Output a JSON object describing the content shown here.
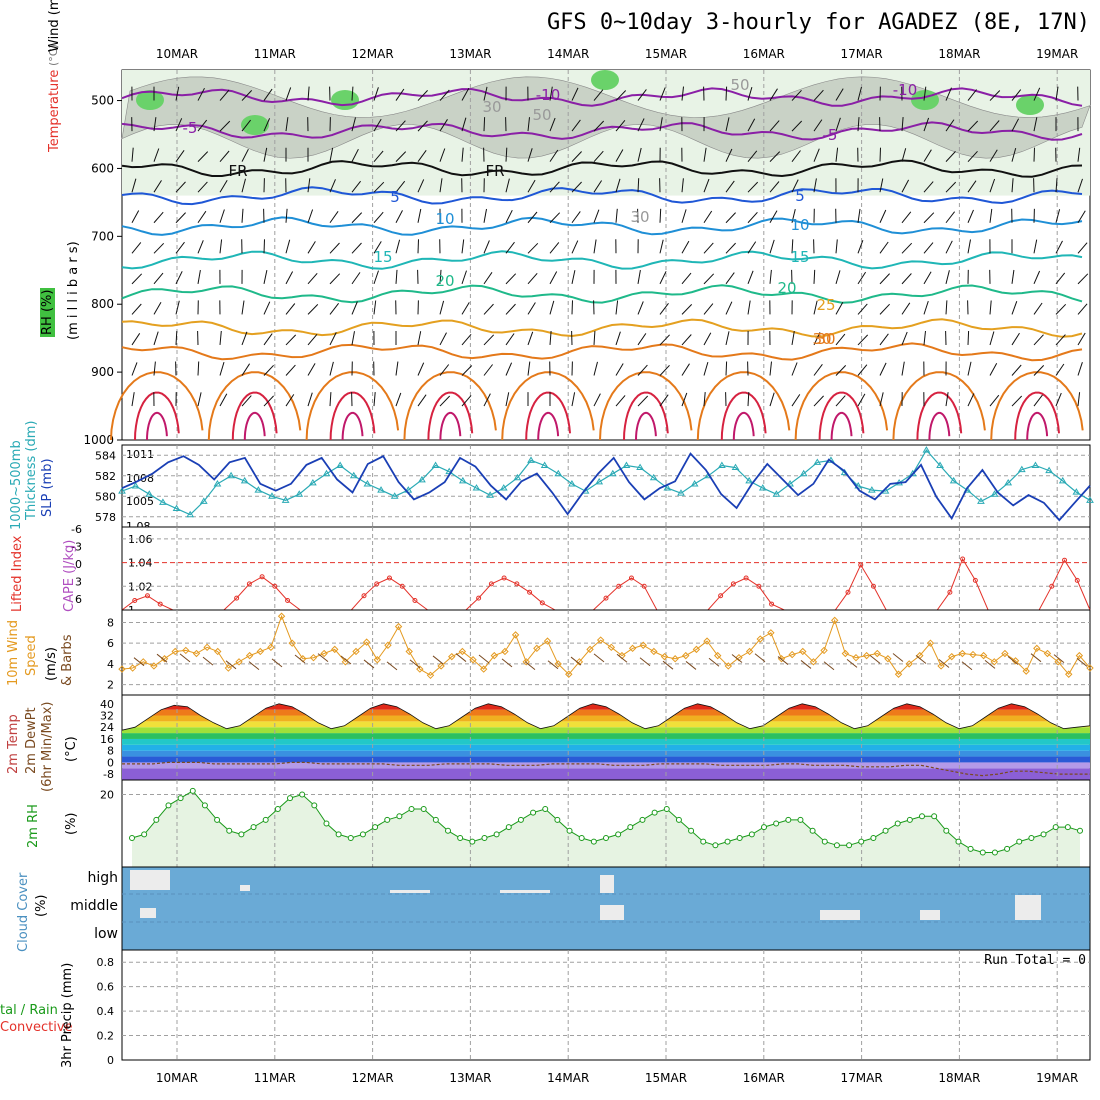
{
  "title": "GFS 0~10day 3-hourly for AGADEZ (8E, 17N)",
  "dates": [
    "10MAR",
    "11MAR",
    "12MAR",
    "13MAR",
    "14MAR",
    "15MAR",
    "16MAR",
    "17MAR",
    "18MAR",
    "19MAR"
  ],
  "run_total_label": "Run Total = 0",
  "colors": {
    "wind_label": "#222222",
    "temp_label": "#e4322a",
    "rh_label_bg": "#40c040",
    "thick": "#2aaab5",
    "slp": "#1a3fb5",
    "li": "#e4322a",
    "cape": "#b04fc0",
    "wind10": "#e49a20",
    "rh2m": "#1a9a1a",
    "cloud": "#6aaad6",
    "precip_total": "#1a9a1a",
    "precip_conv": "#e4322a"
  },
  "panels": {
    "upper": {
      "ylabels": [
        "500",
        "600",
        "700",
        "800",
        "900",
        "1000"
      ],
      "side_labels": {
        "temp": "Temperature",
        "temp_unit": "(°C)",
        "wind": "Wind (m/s)",
        "rh": "RH (%)",
        "pressure": "(m i l l i b a r s)"
      },
      "contour_labels": [
        "-10",
        "-5",
        "FR",
        "5",
        "10",
        "15",
        "20",
        "25",
        "30",
        "-10",
        "-5",
        "FR",
        "5",
        "10",
        "15",
        "20",
        "30",
        "50",
        "30",
        "50",
        "30"
      ]
    },
    "thick_slp": {
      "left_labels": [
        "584",
        "582",
        "580",
        "578"
      ],
      "right_labels": [
        "1011",
        "1008",
        "1005",
        "1.08"
      ],
      "side_labels": {
        "thick": "1000~500mb",
        "thick2": "Thickness (dm)",
        "slp": "SLP (mb)"
      }
    },
    "li_cape": {
      "left_labels": [
        "-6",
        "-3",
        "0",
        "3",
        "6"
      ],
      "right_labels": [
        "1.06",
        "1.04",
        "1.02",
        "1"
      ],
      "side_labels": {
        "li": "Lifted Index",
        "cape": "CAPE (J/kg)"
      }
    },
    "wind10": {
      "right_labels": [
        "8",
        "6",
        "4",
        "2"
      ],
      "side_labels": {
        "a": "10m Wind",
        "b": "Speed",
        "c": "(m/s)",
        "d": "& Barbs"
      }
    },
    "temp2m": {
      "right_labels": [
        "40",
        "32",
        "24",
        "16",
        "8",
        "0",
        "-8"
      ],
      "side_labels": {
        "a": "2m Temp",
        "b": "2m DewPt",
        "c": "(6hr Min/Max)",
        "d": "(°C)"
      }
    },
    "rh2m": {
      "right_labels": [
        "20"
      ],
      "side_labels": {
        "a": "2m RH",
        "b": "(%)"
      }
    },
    "cloud": {
      "levels": [
        "high",
        "middle",
        "low"
      ],
      "side_labels": {
        "a": "Cloud Cover",
        "b": "(%)"
      }
    },
    "precip": {
      "left_labels": [
        "0.8",
        "0.6",
        "0.4",
        "0.2",
        "0"
      ],
      "side_labels": {
        "a": "tal / Rain",
        "b": "Convective",
        "c": "3hr Precip (mm)"
      }
    }
  },
  "chart_data": [
    {
      "type": "line",
      "name": "upper-air",
      "title": "GFS 0~10day 3-hourly for AGADEZ (8E, 17N)",
      "ylabel": "millibars",
      "ylim": [
        1000,
        450
      ],
      "x": "time",
      "series": [
        {
          "name": "-10",
          "level_mb": 495
        },
        {
          "name": "-5",
          "level_mb": 545
        },
        {
          "name": "FR",
          "level_mb": 600
        },
        {
          "name": "5",
          "level_mb": 640
        },
        {
          "name": "10",
          "level_mb": 685
        },
        {
          "name": "15",
          "level_mb": 735
        },
        {
          "name": "20",
          "level_mb": 785
        },
        {
          "name": "25",
          "level_mb": 835
        },
        {
          "name": "30",
          "level_mb": 870
        }
      ]
    },
    {
      "type": "line",
      "name": "thickness",
      "series": [
        {
          "name": "Thickness (dm)",
          "values": [
            580.5,
            581.0,
            580.2,
            579.4,
            578.8,
            578.2,
            579.5,
            581.2,
            582.0,
            581.5,
            580.6,
            580.0,
            579.6,
            580.2,
            581.3,
            582.2,
            583.0,
            582.0,
            581.2,
            580.6,
            580.0,
            580.6,
            581.6,
            583.0,
            582.4,
            581.5,
            580.8,
            580.1,
            580.8,
            581.8,
            583.5,
            583.0,
            582.2,
            581.2,
            580.5,
            581.4,
            582.2,
            583.0,
            582.8,
            581.8,
            580.8,
            580.3,
            581.2,
            582.0,
            583.0,
            582.8,
            581.5,
            580.8,
            580.2,
            581.2,
            582.2,
            583.3,
            583.5,
            582.3,
            581.0,
            580.6,
            580.5,
            581.3,
            582.2,
            584.5,
            583.0,
            581.5,
            580.6,
            579.5,
            580.2,
            581.3,
            582.6,
            583.0,
            582.5,
            581.5,
            580.4,
            579.6
          ]
        }
      ]
    },
    {
      "type": "line",
      "name": "SLP",
      "series": [
        {
          "name": "SLP (mb)",
          "values": [
            1007.5,
            1008.3,
            1009.2,
            1010.5,
            1011.2,
            1010.2,
            1008.5,
            1010.5,
            1011.0,
            1008.0,
            1007.2,
            1008.0,
            1010.2,
            1011.0,
            1008.5,
            1007.0,
            1010.3,
            1011.2,
            1008.2,
            1006.2,
            1007.0,
            1008.2,
            1011.0,
            1010.0,
            1007.8,
            1006.2,
            1008.3,
            1009.2,
            1007.0,
            1004.5,
            1007.0,
            1009.2,
            1011.0,
            1008.2,
            1006.2,
            1007.5,
            1008.3,
            1011.5,
            1009.6,
            1006.8,
            1005.2,
            1008.0,
            1010.3,
            1008.5,
            1006.7,
            1008.0,
            1010.8,
            1009.5,
            1007.2,
            1006.2,
            1008.0,
            1008.2,
            1010.2,
            1006.5,
            1004.0,
            1007.5,
            1009.6,
            1007.0,
            1005.5,
            1006.7,
            1005.8,
            1003.8,
            1005.8,
            1007.8
          ]
        }
      ]
    },
    {
      "type": "line",
      "name": "CAPE / Lifted Index",
      "ylim": [
        1,
        1.07
      ],
      "series": [
        {
          "name": "CAPE (J/kg)",
          "values": [
            1.0,
            1.008,
            1.012,
            1.005,
            1.0,
            1.0,
            1.0,
            1.0,
            1.0,
            1.01,
            1.022,
            1.028,
            1.02,
            1.008,
            1.0,
            1.0,
            1.0,
            1.0,
            1.0,
            1.012,
            1.022,
            1.027,
            1.02,
            1.008,
            1.0,
            1.0,
            1.0,
            1.0,
            1.01,
            1.022,
            1.027,
            1.022,
            1.015,
            1.006,
            1.0,
            1.0,
            1.0,
            1.0,
            1.01,
            1.02,
            1.027,
            1.02,
            1.0,
            1.0,
            1.0,
            1.0,
            1.0,
            1.012,
            1.022,
            1.027,
            1.02,
            1.005,
            1.0,
            1.0,
            1.0,
            1.0,
            1.0,
            1.015,
            1.038,
            1.02,
            1.0,
            1.0,
            1.0,
            1.0,
            1.0,
            1.015,
            1.043,
            1.025,
            1.0,
            1.0,
            1.0,
            1.0,
            1.0,
            1.02,
            1.042,
            1.025,
            1.0
          ]
        }
      ]
    },
    {
      "type": "line",
      "name": "10m wind speed",
      "ylim": [
        1,
        9
      ],
      "series": [
        {
          "name": "10m Wind Speed (m/s)",
          "values": [
            3.5,
            3.6,
            4.2,
            3.8,
            4.5,
            5.2,
            5.3,
            5.0,
            5.6,
            5.2,
            3.6,
            4.2,
            4.8,
            5.2,
            5.6,
            8.6,
            6.0,
            4.5,
            4.6,
            5.0,
            5.4,
            4.2,
            5.2,
            6.1,
            4.4,
            5.8,
            7.6,
            5.2,
            3.5,
            2.9,
            3.8,
            4.7,
            5.2,
            4.4,
            3.5,
            4.8,
            5.2,
            6.8,
            4.2,
            5.5,
            6.2,
            4.0,
            3.0,
            4.2,
            5.4,
            6.3,
            5.6,
            4.8,
            5.5,
            5.8,
            5.2,
            4.7,
            4.5,
            4.8,
            5.4,
            6.2,
            4.8,
            3.8,
            4.6,
            5.2,
            6.4,
            7.0,
            4.5,
            4.9,
            5.2,
            4.2,
            5.3,
            8.2,
            5.0,
            4.6,
            4.8,
            5.0,
            4.5,
            3.0,
            4.0,
            4.8,
            6.0,
            3.8,
            4.7,
            5.0,
            4.9,
            4.8,
            4.2,
            5.0,
            4.3,
            3.3,
            5.5,
            5.0,
            4.2,
            3.0,
            4.8,
            3.6
          ]
        }
      ]
    },
    {
      "type": "area",
      "name": "2m temperature",
      "ylim": [
        -12,
        44
      ],
      "series": [
        {
          "name": "2m Temp (°C)",
          "values": [
            22,
            24,
            30,
            36,
            39,
            38,
            32,
            27,
            23,
            25,
            31,
            37,
            40,
            38,
            33,
            27,
            23,
            25,
            31,
            37,
            40,
            38,
            33,
            27,
            23,
            25,
            31,
            37,
            40,
            38,
            33,
            27,
            23,
            25,
            31,
            37,
            40,
            38,
            33,
            27,
            23,
            25,
            31,
            37,
            40,
            38,
            33,
            27,
            23,
            25,
            31,
            37,
            40,
            38,
            33,
            27,
            23,
            25,
            31,
            37,
            40,
            38,
            33,
            27,
            23,
            25,
            31,
            37,
            40,
            38,
            33,
            27,
            23,
            24,
            25
          ]
        },
        {
          "name": "2m DewPt (°C)",
          "values": [
            -1,
            -1,
            -1,
            0,
            0,
            0,
            -1,
            -1,
            -1,
            -1,
            -1,
            0,
            0,
            -1,
            -1,
            -1,
            -1,
            -1,
            -2,
            -2,
            -2,
            -1,
            -1,
            -1,
            -1,
            -2,
            -2,
            -2,
            -1,
            -1,
            -1,
            -1,
            -2,
            -2,
            -2,
            -1,
            -1,
            -1,
            -1,
            -2,
            -2,
            -2,
            -2,
            -1,
            -1,
            -2,
            -2,
            -2,
            -3,
            -3,
            -3,
            -2,
            -2,
            -4,
            -6,
            -8,
            -9,
            -8,
            -6,
            -6,
            -7,
            -8,
            -8,
            -8
          ]
        }
      ]
    },
    {
      "type": "line",
      "name": "2m RH",
      "series": [
        {
          "name": "2m RH (%)",
          "values": [
            8,
            9,
            13,
            17,
            19,
            21,
            17,
            13,
            10,
            9,
            11,
            13,
            16,
            19,
            20,
            17,
            12,
            9,
            8,
            9,
            11,
            13,
            14,
            16,
            16,
            13,
            10,
            8,
            7,
            8,
            9,
            11,
            13,
            15,
            16,
            13,
            10,
            8,
            7,
            8,
            9,
            11,
            13,
            15,
            16,
            13,
            10,
            7,
            6,
            7,
            8,
            9,
            11,
            12,
            13,
            13,
            10,
            7,
            6,
            6,
            7,
            8,
            10,
            12,
            13,
            14,
            14,
            10,
            7,
            5,
            4,
            4,
            5,
            7,
            8,
            9,
            11,
            11,
            10
          ]
        }
      ]
    },
    {
      "type": "table",
      "name": "cloud cover",
      "categories": [
        "high",
        "middle",
        "low"
      ]
    },
    {
      "type": "line",
      "name": "3hr precip",
      "ylim": [
        0,
        0.9
      ],
      "series": [
        {
          "name": "3hr Precip (mm)",
          "values": [
            0,
            0,
            0,
            0,
            0,
            0,
            0,
            0,
            0,
            0
          ]
        }
      ]
    }
  ]
}
